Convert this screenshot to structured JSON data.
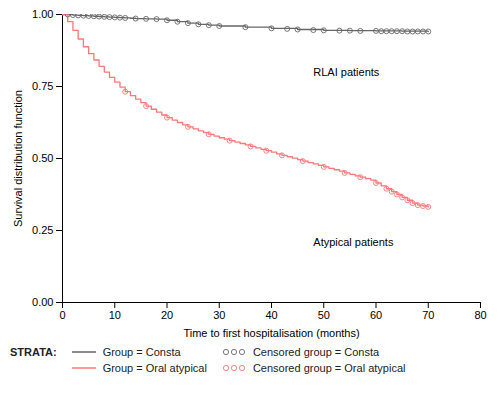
{
  "chart_data": {
    "type": "step",
    "xlabel": "Time to first hospitalisation (months)",
    "ylabel": "Survival distribution function",
    "xlim": [
      0,
      80
    ],
    "ylim": [
      0.0,
      1.0
    ],
    "xticks": [
      0,
      10,
      20,
      30,
      40,
      50,
      60,
      70,
      80
    ],
    "yticks": [
      {
        "value": 0,
        "label": "0.00"
      },
      0.25,
      {
        "value": 0.5,
        "label": "0.50"
      },
      0.75,
      {
        "value": 1,
        "label": "1.00"
      }
    ],
    "grid": false,
    "legend": "bottom",
    "legend_title": "STRATA:",
    "annotations": [
      {
        "text": "RLAI patients",
        "x": 48,
        "y": 0.8
      },
      {
        "text": "Atypical patients",
        "x": 48,
        "y": 0.21
      }
    ],
    "series": [
      {
        "name": "Group = Consta",
        "type": "step",
        "color": "#666666",
        "x": [
          0,
          1,
          2,
          3,
          4,
          5,
          6,
          7,
          8,
          9,
          10,
          11,
          12,
          13,
          14,
          16,
          18,
          20,
          22,
          24,
          26,
          28,
          30,
          35,
          40,
          45,
          50,
          55,
          60,
          65,
          70
        ],
        "values": [
          1.0,
          1.0,
          0.998,
          0.997,
          0.996,
          0.995,
          0.994,
          0.993,
          0.992,
          0.991,
          0.99,
          0.989,
          0.988,
          0.987,
          0.986,
          0.985,
          0.984,
          0.98,
          0.975,
          0.97,
          0.966,
          0.963,
          0.96,
          0.956,
          0.952,
          0.948,
          0.945,
          0.944,
          0.943,
          0.942,
          0.941
        ]
      },
      {
        "name": "Group = Oral atypical",
        "type": "step",
        "color": "#FF7777",
        "x": [
          0,
          1,
          2,
          3,
          4,
          5,
          6,
          7,
          8,
          9,
          10,
          11,
          12,
          13,
          14,
          15,
          16,
          17,
          18,
          19,
          20,
          21,
          22,
          23,
          24,
          25,
          26,
          27,
          28,
          29,
          30,
          31,
          32,
          33,
          34,
          35,
          36,
          37,
          38,
          39,
          40,
          41,
          42,
          43,
          44,
          45,
          46,
          47,
          48,
          49,
          50,
          51,
          52,
          53,
          54,
          55,
          56,
          57,
          58,
          59,
          60,
          61,
          62,
          63,
          64,
          65,
          66,
          67,
          68,
          69,
          70
        ],
        "values": [
          1.0,
          0.975,
          0.945,
          0.915,
          0.888,
          0.864,
          0.842,
          0.82,
          0.8,
          0.782,
          0.765,
          0.748,
          0.732,
          0.718,
          0.706,
          0.694,
          0.682,
          0.671,
          0.661,
          0.651,
          0.642,
          0.633,
          0.625,
          0.617,
          0.61,
          0.603,
          0.596,
          0.59,
          0.584,
          0.578,
          0.572,
          0.567,
          0.562,
          0.557,
          0.552,
          0.547,
          0.542,
          0.537,
          0.532,
          0.527,
          0.522,
          0.516,
          0.511,
          0.506,
          0.501,
          0.496,
          0.491,
          0.486,
          0.481,
          0.476,
          0.471,
          0.466,
          0.461,
          0.456,
          0.45,
          0.445,
          0.44,
          0.435,
          0.43,
          0.425,
          0.415,
          0.405,
          0.395,
          0.385,
          0.375,
          0.365,
          0.355,
          0.345,
          0.338,
          0.335,
          0.332
        ]
      },
      {
        "name": "Censored group = Consta",
        "type": "scatter",
        "marker": "open_circle",
        "color": "#666666",
        "x": [
          1,
          2,
          3,
          4,
          5,
          6,
          7,
          8,
          9,
          10,
          11,
          12,
          14,
          16,
          18,
          20,
          22,
          24,
          26,
          28,
          30,
          35,
          40,
          43,
          45,
          48,
          50,
          53,
          55,
          57,
          60,
          61,
          62,
          63,
          64,
          65,
          66,
          67,
          68,
          69,
          70
        ],
        "values": [
          1.0,
          0.998,
          0.997,
          0.996,
          0.995,
          0.994,
          0.993,
          0.992,
          0.991,
          0.99,
          0.989,
          0.988,
          0.986,
          0.985,
          0.984,
          0.98,
          0.975,
          0.97,
          0.966,
          0.963,
          0.96,
          0.956,
          0.952,
          0.95,
          0.948,
          0.946,
          0.945,
          0.944,
          0.944,
          0.943,
          0.943,
          0.942,
          0.942,
          0.942,
          0.942,
          0.942,
          0.941,
          0.941,
          0.941,
          0.941,
          0.941
        ]
      },
      {
        "name": "Censored group = Oral atypical",
        "type": "scatter",
        "marker": "open_circle",
        "color": "#FF7777",
        "x": [
          12,
          16,
          20,
          24,
          28,
          32,
          36,
          39,
          42,
          46,
          50,
          54,
          57,
          60,
          62,
          63,
          64,
          65,
          66,
          67,
          68,
          69,
          70
        ],
        "values": [
          0.732,
          0.682,
          0.642,
          0.61,
          0.584,
          0.562,
          0.542,
          0.527,
          0.511,
          0.491,
          0.471,
          0.45,
          0.435,
          0.415,
          0.395,
          0.385,
          0.375,
          0.365,
          0.355,
          0.345,
          0.338,
          0.335,
          0.332
        ]
      }
    ]
  }
}
